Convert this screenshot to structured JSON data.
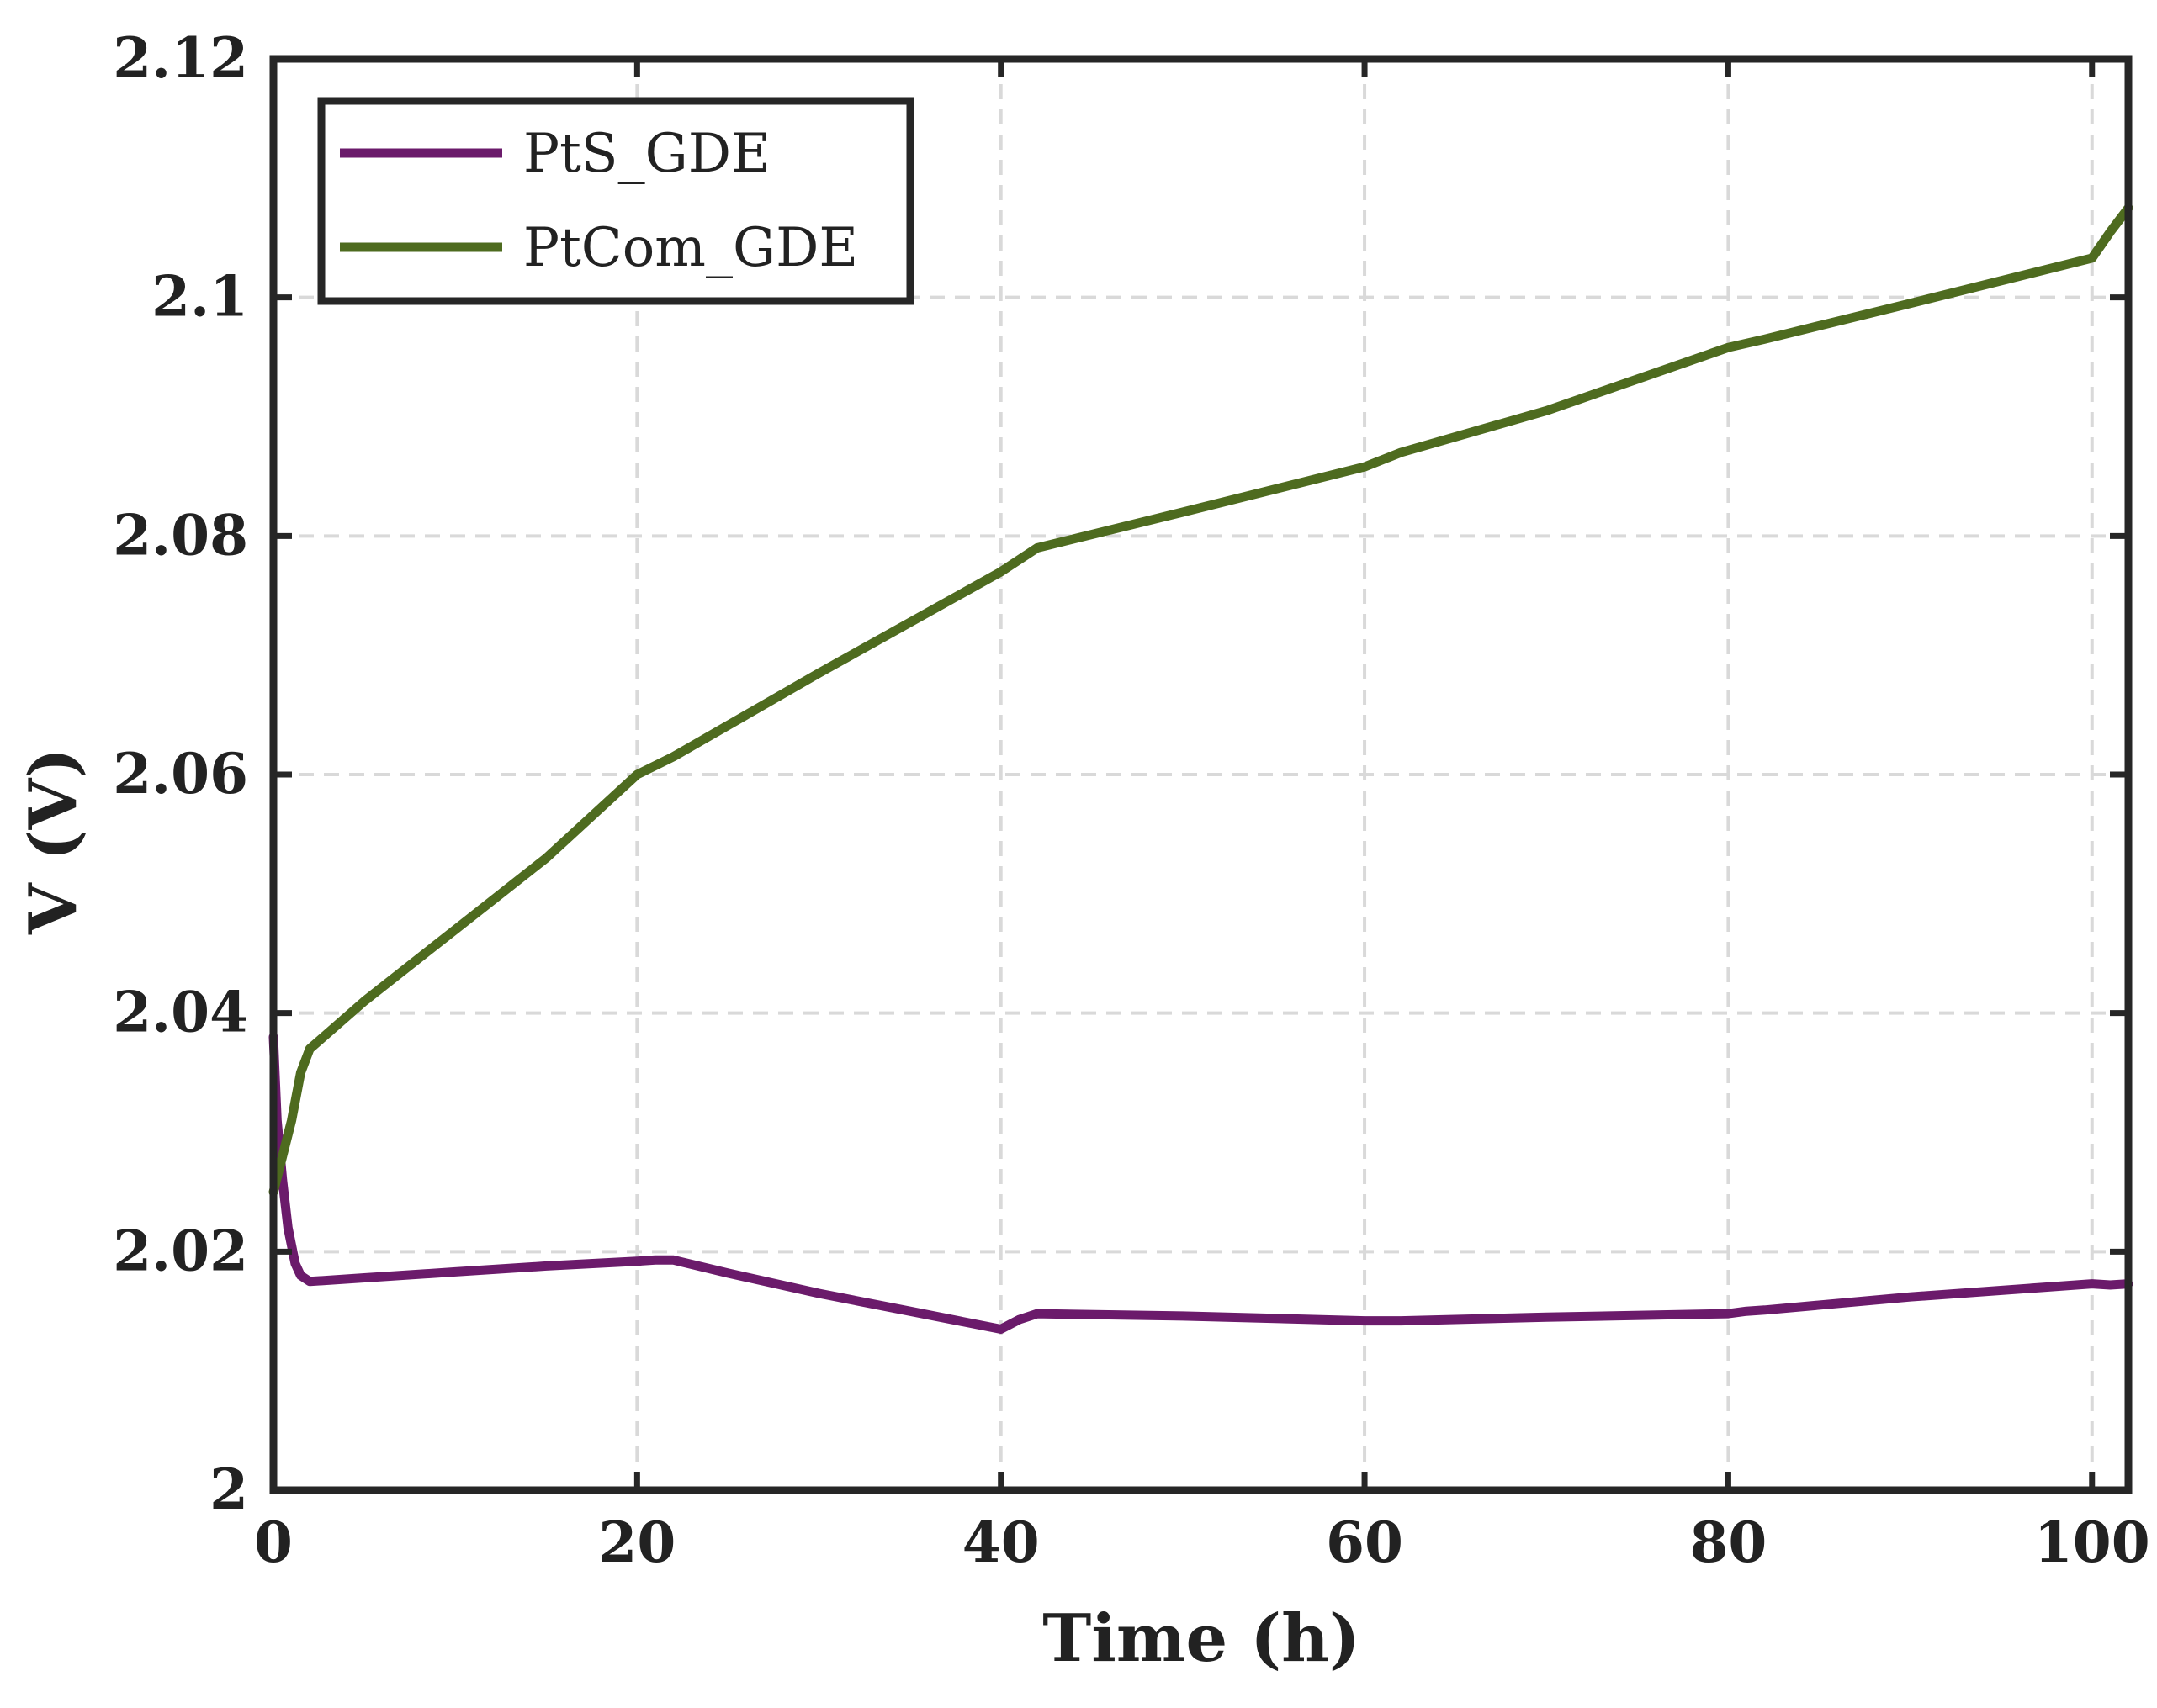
{
  "chart_data": {
    "type": "line",
    "title": "",
    "xlabel": "Time (h)",
    "ylabel": "V (V)",
    "xlim": [
      0,
      102
    ],
    "ylim": [
      2.0,
      2.12
    ],
    "grid": true,
    "legend_position": "top-left",
    "x_ticks": [
      0,
      20,
      40,
      60,
      80,
      100
    ],
    "x_tick_labels": [
      "0",
      "20",
      "40",
      "60",
      "80",
      "100"
    ],
    "y_ticks": [
      2.0,
      2.02,
      2.04,
      2.06,
      2.08,
      2.1,
      2.12
    ],
    "y_tick_labels": [
      "2",
      "2.02",
      "2.04",
      "2.06",
      "2.08",
      "2.1",
      "2.12"
    ],
    "series": [
      {
        "name": "PtS_GDE",
        "color": "#6b1b6b",
        "x": [
          0,
          0.2,
          0.5,
          0.8,
          1.2,
          1.5,
          2,
          5,
          10,
          15,
          20,
          21,
          22,
          25,
          30,
          35,
          40,
          41,
          42,
          50,
          60,
          61,
          62,
          70,
          80,
          81,
          82,
          90,
          100,
          101,
          102
        ],
        "y": [
          2.038,
          2.031,
          2.026,
          2.022,
          2.019,
          2.018,
          2.0175,
          2.0178,
          2.0183,
          2.0188,
          2.0192,
          2.0193,
          2.0193,
          2.0182,
          2.0165,
          2.015,
          2.0135,
          2.0143,
          2.0148,
          2.0146,
          2.0142,
          2.0142,
          2.0142,
          2.0145,
          2.0148,
          2.015,
          2.0151,
          2.0162,
          2.0173,
          2.0172,
          2.0173
        ]
      },
      {
        "name": "PtCom_GDE",
        "color": "#4e6b1f",
        "x": [
          0,
          0.5,
          1,
          1.5,
          2,
          5,
          10,
          15,
          20,
          22,
          30,
          40,
          42,
          50,
          60,
          62,
          70,
          80,
          82,
          90,
          100,
          101,
          102
        ],
        "y": [
          2.025,
          2.028,
          2.031,
          2.035,
          2.037,
          2.041,
          2.047,
          2.053,
          2.06,
          2.0615,
          2.0685,
          2.077,
          2.079,
          2.082,
          2.0858,
          2.087,
          2.0905,
          2.0958,
          2.0965,
          2.0995,
          2.1033,
          2.1055,
          2.1075
        ]
      }
    ]
  }
}
